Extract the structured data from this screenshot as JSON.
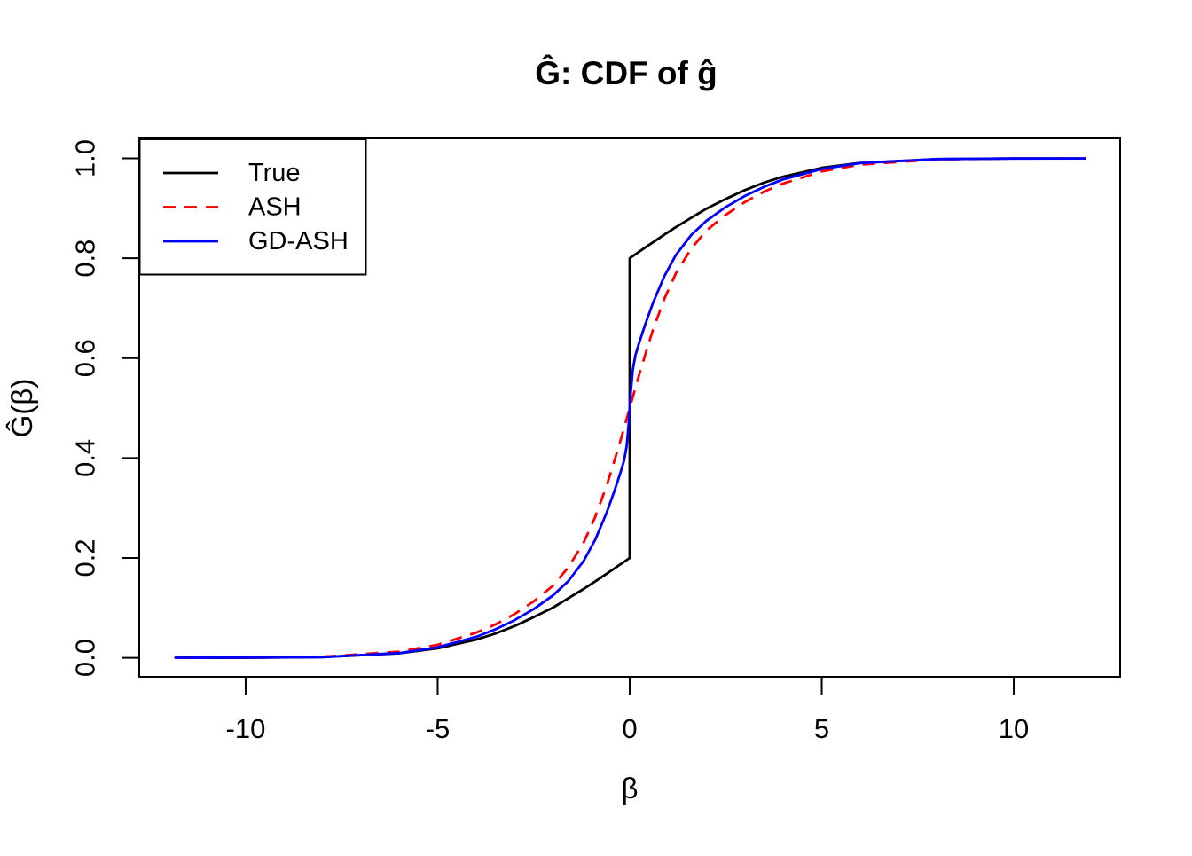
{
  "chart_data": {
    "type": "line",
    "title": "Ĝ: CDF of ĝ",
    "xlabel": "β",
    "ylabel": "Ĝ(β)",
    "xlim": [
      -12.77,
      12.77
    ],
    "ylim": [
      -0.038,
      1.04
    ],
    "grid": false,
    "frame": true,
    "x_ticks": {
      "values": [
        -10,
        -5,
        0,
        5,
        10
      ],
      "labels": [
        "-10",
        "-5",
        "0",
        "5",
        "10"
      ]
    },
    "y_ticks": {
      "values": [
        0,
        0.2,
        0.4,
        0.6,
        0.8,
        1.0
      ],
      "labels": [
        "0.0",
        "0.2",
        "0.4",
        "0.6",
        "0.8",
        "1.0"
      ]
    },
    "legend": {
      "position": "top-left",
      "entries": [
        {
          "label": "True",
          "color": "#000000",
          "line_style": "solid"
        },
        {
          "label": "ASH",
          "color": "#FF0000",
          "line_style": "dashed"
        },
        {
          "label": "GD-ASH",
          "color": "#0000FF",
          "line_style": "solid"
        }
      ]
    },
    "series": [
      {
        "name": "True",
        "color": "#000000",
        "line_style": "solid",
        "description": "True CDF: 0.6 point mass at 0 plus 0.4 N(0,3^2); jumps from 0.2 to 0.8 at beta=0",
        "points": [
          [
            -11.85,
            0.0001
          ],
          [
            -10,
            0.0002
          ],
          [
            -8,
            0.0015
          ],
          [
            -6,
            0.0091
          ],
          [
            -5,
            0.019
          ],
          [
            -4,
            0.0365
          ],
          [
            -3.5,
            0.0484
          ],
          [
            -3,
            0.0635
          ],
          [
            -2.5,
            0.0813
          ],
          [
            -2,
            0.1006
          ],
          [
            -1.6,
            0.1192
          ],
          [
            -1.2,
            0.1378
          ],
          [
            -0.9,
            0.1528
          ],
          [
            -0.6,
            0.1683
          ],
          [
            -0.4,
            0.1788
          ],
          [
            -0.25,
            0.1868
          ],
          [
            -0.15,
            0.192
          ],
          [
            -0.08,
            0.1957
          ],
          [
            -0.03,
            0.1984
          ],
          [
            0,
            0.2
          ],
          [
            0,
            0.8
          ],
          [
            0.03,
            0.8016
          ],
          [
            0.08,
            0.8043
          ],
          [
            0.15,
            0.808
          ],
          [
            0.25,
            0.8132
          ],
          [
            0.4,
            0.8212
          ],
          [
            0.6,
            0.8317
          ],
          [
            0.9,
            0.8472
          ],
          [
            1.2,
            0.8622
          ],
          [
            1.6,
            0.8808
          ],
          [
            2,
            0.8994
          ],
          [
            2.5,
            0.9187
          ],
          [
            3,
            0.9365
          ],
          [
            3.5,
            0.9516
          ],
          [
            4,
            0.9635
          ],
          [
            5,
            0.981
          ],
          [
            6,
            0.9909
          ],
          [
            8,
            0.9985
          ],
          [
            10,
            0.9998
          ],
          [
            11.87,
            0.9999
          ]
        ]
      },
      {
        "name": "ASH",
        "color": "#FF0000",
        "line_style": "dashed",
        "description": "ASH estimated CDF: smooth S-curve through (0, 0.5)",
        "points": [
          [
            -11.85,
            0.0001
          ],
          [
            -10,
            0.0002
          ],
          [
            -8,
            0.0021
          ],
          [
            -6,
            0.0125
          ],
          [
            -5,
            0.0261
          ],
          [
            -4,
            0.0502
          ],
          [
            -3.5,
            0.0666
          ],
          [
            -3,
            0.0875
          ],
          [
            -2.5,
            0.113
          ],
          [
            -2,
            0.1442
          ],
          [
            -1.6,
            0.1809
          ],
          [
            -1.2,
            0.2305
          ],
          [
            -0.9,
            0.2816
          ],
          [
            -0.6,
            0.3445
          ],
          [
            -0.4,
            0.3944
          ],
          [
            -0.25,
            0.4325
          ],
          [
            -0.15,
            0.4593
          ],
          [
            -0.08,
            0.4781
          ],
          [
            -0.03,
            0.4918
          ],
          [
            0,
            0.5
          ],
          [
            0.03,
            0.5082
          ],
          [
            0.08,
            0.5219
          ],
          [
            0.15,
            0.5407
          ],
          [
            0.25,
            0.5675
          ],
          [
            0.4,
            0.6056
          ],
          [
            0.6,
            0.6555
          ],
          [
            0.9,
            0.7184
          ],
          [
            1.2,
            0.7695
          ],
          [
            1.6,
            0.8191
          ],
          [
            2,
            0.8558
          ],
          [
            2.5,
            0.887
          ],
          [
            3,
            0.9125
          ],
          [
            3.5,
            0.9334
          ],
          [
            4,
            0.9498
          ],
          [
            5,
            0.9739
          ],
          [
            6,
            0.9875
          ],
          [
            8,
            0.9979
          ],
          [
            10,
            0.9998
          ],
          [
            11.87,
            0.9999
          ]
        ]
      },
      {
        "name": "GD-ASH",
        "color": "#0000FF",
        "line_style": "solid",
        "description": "GD-ASH estimated CDF: steep near-vertical segment at 0 from about 0.43 to 0.57",
        "points": [
          [
            -11.85,
            0.0001
          ],
          [
            -10,
            0.0003
          ],
          [
            -8,
            0.0014
          ],
          [
            -6,
            0.0096
          ],
          [
            -5,
            0.0212
          ],
          [
            -4,
            0.042
          ],
          [
            -3.5,
            0.0569
          ],
          [
            -3,
            0.0753
          ],
          [
            -2.5,
            0.0975
          ],
          [
            -2,
            0.1248
          ],
          [
            -1.6,
            0.1535
          ],
          [
            -1.2,
            0.1938
          ],
          [
            -0.9,
            0.2361
          ],
          [
            -0.6,
            0.2906
          ],
          [
            -0.4,
            0.3337
          ],
          [
            -0.25,
            0.3687
          ],
          [
            -0.15,
            0.3938
          ],
          [
            -0.08,
            0.4229
          ],
          [
            -0.03,
            0.4658
          ],
          [
            0,
            0.5
          ],
          [
            0.03,
            0.5342
          ],
          [
            0.08,
            0.5771
          ],
          [
            0.15,
            0.6062
          ],
          [
            0.25,
            0.6313
          ],
          [
            0.4,
            0.6663
          ],
          [
            0.6,
            0.7094
          ],
          [
            0.9,
            0.7639
          ],
          [
            1.2,
            0.8062
          ],
          [
            1.6,
            0.8465
          ],
          [
            2,
            0.8752
          ],
          [
            2.5,
            0.9025
          ],
          [
            3,
            0.9247
          ],
          [
            3.5,
            0.9431
          ],
          [
            4,
            0.958
          ],
          [
            5,
            0.9788
          ],
          [
            6,
            0.9904
          ],
          [
            8,
            0.9986
          ],
          [
            10,
            0.9997
          ],
          [
            11.87,
            0.9999
          ]
        ]
      }
    ]
  }
}
